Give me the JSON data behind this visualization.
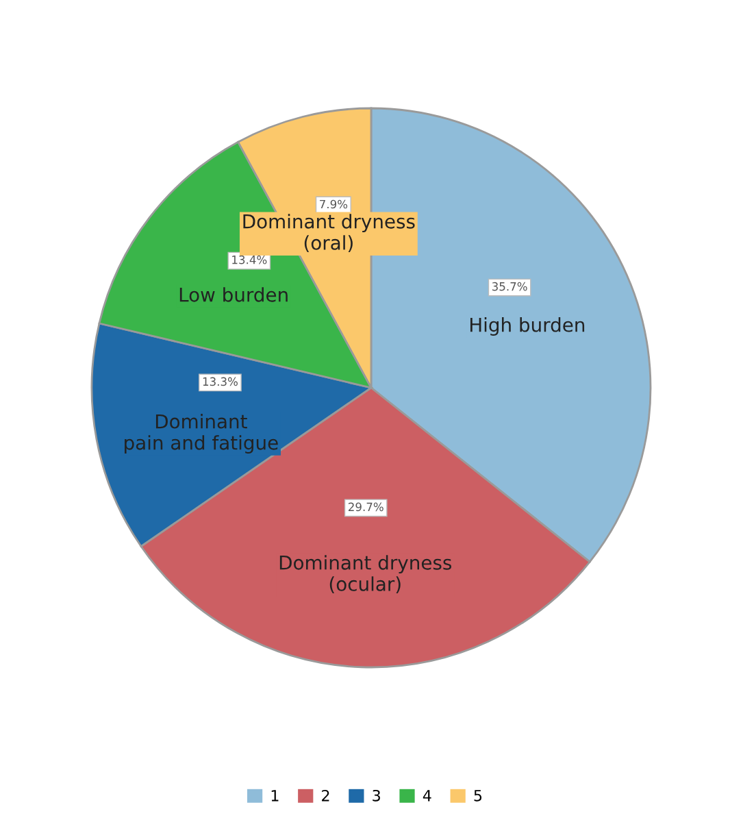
{
  "chart_data": {
    "type": "pie",
    "categories": [
      "1",
      "2",
      "3",
      "4",
      "5"
    ],
    "values": [
      35.7,
      29.7,
      13.3,
      13.4,
      7.9
    ],
    "colors": [
      "#8fbcd9",
      "#cc5f63",
      "#1f6aa8",
      "#3ab54a",
      "#fbc86b"
    ],
    "value_labels": [
      "35.7%",
      "29.7%",
      "13.3%",
      "13.4%",
      "7.9%"
    ],
    "annotations": [
      "High burden",
      "Dominant dryness\n(ocular)",
      "Dominant\npain and fatigue",
      "Low burden",
      "Dominant dryness\n(oral)"
    ],
    "legend": "bottom"
  }
}
